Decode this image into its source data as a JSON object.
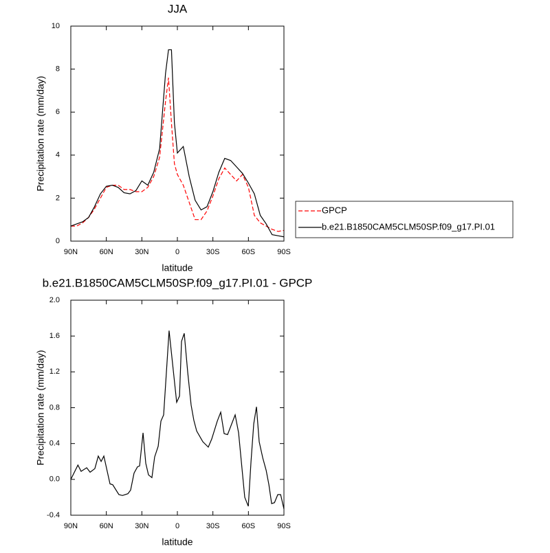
{
  "chart_data": [
    {
      "type": "line",
      "title": "JJA",
      "x_label": "latitude",
      "y_label": "Precipitation rate (mm/day)",
      "x": [
        90,
        85,
        80,
        75,
        70,
        65,
        60,
        55,
        50,
        45,
        40,
        35,
        30,
        25,
        20,
        15,
        10,
        7.5,
        5,
        2.5,
        0,
        -5,
        -10,
        -15,
        -20,
        -25,
        -30,
        -35,
        -40,
        -45,
        -50,
        -55,
        -60,
        -65,
        -70,
        -75,
        -80,
        -85,
        -90
      ],
      "series": [
        {
          "name": "GPCP",
          "color": "#ff0000",
          "line_style": "dashed",
          "values": [
            0.7,
            0.7,
            0.85,
            1.1,
            1.5,
            2.0,
            2.5,
            2.6,
            2.6,
            2.4,
            2.4,
            2.3,
            2.3,
            2.5,
            3.0,
            3.9,
            6.5,
            7.6,
            5.5,
            3.6,
            3.1,
            2.6,
            1.8,
            1.0,
            1.0,
            1.4,
            2.1,
            2.9,
            3.4,
            3.1,
            2.8,
            3.1,
            2.5,
            1.2,
            0.85,
            0.7,
            0.55,
            0.45,
            0.5
          ]
        },
        {
          "name": "b.e21.B1850CAM5CLM50SP.f09_g17.PI.01",
          "color": "#000000",
          "line_style": "solid",
          "values": [
            0.7,
            0.8,
            0.9,
            1.1,
            1.6,
            2.2,
            2.55,
            2.6,
            2.5,
            2.25,
            2.2,
            2.35,
            2.8,
            2.6,
            3.2,
            4.3,
            7.8,
            8.9,
            8.9,
            5.5,
            4.1,
            4.4,
            3.0,
            1.9,
            1.45,
            1.6,
            2.3,
            3.2,
            3.85,
            3.75,
            3.45,
            3.15,
            2.7,
            2.2,
            1.2,
            0.8,
            0.3,
            0.25,
            0.2
          ]
        }
      ],
      "xlim": [
        90,
        -90
      ],
      "xticks": [
        {
          "value": 90,
          "label": "90N"
        },
        {
          "value": 60,
          "label": "60N"
        },
        {
          "value": 30,
          "label": "30N"
        },
        0,
        {
          "value": -30,
          "label": "30S"
        },
        {
          "value": -60,
          "label": "60S"
        },
        {
          "value": -90,
          "label": "90S"
        }
      ],
      "ylim": [
        0,
        10
      ],
      "yticks": [
        0,
        2,
        4,
        6,
        8,
        10
      ],
      "legend": "right"
    },
    {
      "type": "line",
      "title": "b.e21.B1850CAM5CLM50SP.f09_g17.PI.01 - GPCP",
      "x_label": "latitude",
      "y_label": "Precipitation rate (mm/day)",
      "x": [
        90,
        84,
        81.3,
        76.6,
        73.7,
        69.7,
        66.8,
        64.4,
        62.1,
        56.9,
        54.6,
        49.4,
        46.4,
        41.8,
        39.5,
        36.6,
        33.7,
        31.9,
        29,
        26.7,
        24.4,
        21.5,
        19.2,
        16.2,
        13.9,
        11.6,
        7,
        0.6,
        -1.8,
        -3.5,
        -5.8,
        -8.7,
        -11.6,
        -13.9,
        -16.3,
        -21.5,
        -26.1,
        -29,
        -33.7,
        -36.6,
        -39.5,
        -42.4,
        -48.8,
        -51.7,
        -56.9,
        -59.9,
        -62.2,
        -64.5,
        -66.8,
        -69.1,
        -72.1,
        -75,
        -77.3,
        -79.6,
        -82,
        -84.8,
        -87.2,
        -90
      ],
      "series": [
        {
          "name": null,
          "color": "#000000",
          "line_style": "solid",
          "values": [
            0.0,
            0.16,
            0.09,
            0.13,
            0.08,
            0.12,
            0.26,
            0.2,
            0.26,
            -0.05,
            -0.06,
            -0.17,
            -0.18,
            -0.16,
            -0.12,
            0.07,
            0.14,
            0.15,
            0.52,
            0.18,
            0.05,
            0.02,
            0.25,
            0.37,
            0.65,
            0.72,
            1.66,
            0.86,
            0.93,
            1.54,
            1.63,
            1.2,
            0.83,
            0.66,
            0.54,
            0.42,
            0.36,
            0.45,
            0.65,
            0.75,
            0.51,
            0.5,
            0.72,
            0.52,
            -0.2,
            -0.3,
            0.2,
            0.62,
            0.81,
            0.42,
            0.24,
            0.1,
            -0.06,
            -0.27,
            -0.26,
            -0.17,
            -0.17,
            -0.33
          ]
        }
      ],
      "xlim": [
        90,
        -90
      ],
      "xticks": [
        {
          "value": 90,
          "label": "90N"
        },
        {
          "value": 60,
          "label": "60N"
        },
        {
          "value": 30,
          "label": "30N"
        },
        0,
        {
          "value": -30,
          "label": "30S"
        },
        {
          "value": -60,
          "label": "60S"
        },
        {
          "value": -90,
          "label": "90S"
        }
      ],
      "ylim": [
        -0.4,
        2
      ],
      "yticks": [
        -0.4,
        {
          "value": 0,
          "label": "0.0"
        },
        0.4,
        0.8,
        1.2,
        1.6,
        {
          "value": 2,
          "label": "2.0"
        }
      ],
      "legend": null
    }
  ]
}
